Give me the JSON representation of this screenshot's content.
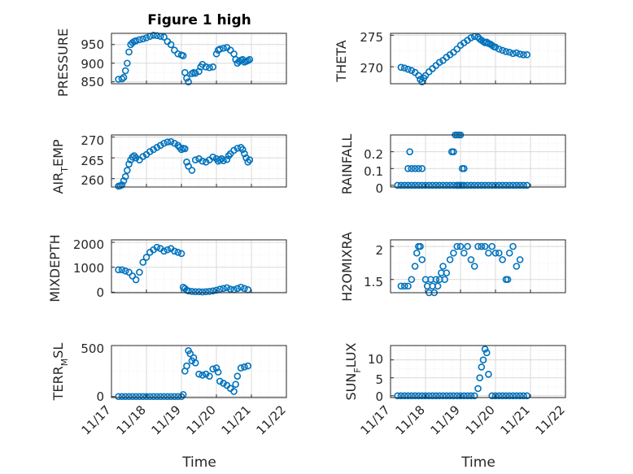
{
  "figure_title": "Figure 1 high",
  "marker_color": "#0072BD",
  "chart_data": [
    {
      "type": "scatter",
      "title": "Figure 1 high",
      "ylabel": "PRESSURE",
      "ylim": [
        845,
        980
      ],
      "yticks": [
        850,
        900,
        950
      ],
      "xlim": [
        0,
        5
      ],
      "x": [
        0.2,
        0.3,
        0.35,
        0.4,
        0.45,
        0.5,
        0.55,
        0.6,
        0.65,
        0.7,
        0.8,
        0.9,
        1.0,
        1.1,
        1.2,
        1.3,
        1.4,
        1.5,
        1.6,
        1.7,
        1.8,
        1.9,
        2.0,
        2.05,
        2.1,
        2.15,
        2.2,
        2.3,
        2.35,
        2.4,
        2.5,
        2.55,
        2.6,
        2.7,
        2.8,
        2.9,
        3.0,
        3.05,
        3.1,
        3.2,
        3.3,
        3.4,
        3.5,
        3.55,
        3.6,
        3.65,
        3.7,
        3.75,
        3.8,
        3.85,
        3.9,
        3.95
      ],
      "y": [
        857,
        858,
        862,
        880,
        900,
        930,
        950,
        955,
        958,
        960,
        963,
        965,
        968,
        972,
        975,
        974,
        972,
        970,
        958,
        950,
        935,
        925,
        922,
        920,
        875,
        860,
        850,
        872,
        875,
        873,
        878,
        890,
        897,
        890,
        888,
        890,
        925,
        935,
        938,
        940,
        942,
        935,
        925,
        910,
        900,
        905,
        908,
        910,
        903,
        905,
        907,
        910
      ]
    },
    {
      "type": "scatter",
      "ylabel": "THETA",
      "ylim": [
        267.3,
        275.3
      ],
      "yticks": [
        270,
        275
      ],
      "xlim": [
        0,
        5
      ],
      "x": [
        0.3,
        0.4,
        0.5,
        0.6,
        0.7,
        0.8,
        0.85,
        0.9,
        0.95,
        1.0,
        1.1,
        1.2,
        1.3,
        1.4,
        1.5,
        1.6,
        1.7,
        1.8,
        1.9,
        2.0,
        2.1,
        2.2,
        2.3,
        2.4,
        2.5,
        2.55,
        2.6,
        2.65,
        2.7,
        2.75,
        2.8,
        2.85,
        2.9,
        2.95,
        3.0,
        3.1,
        3.2,
        3.3,
        3.4,
        3.5,
        3.6,
        3.7,
        3.8,
        3.9
      ],
      "y": [
        269.9,
        269.8,
        269.6,
        269.4,
        269.1,
        268.6,
        268.0,
        267.6,
        268.2,
        268.6,
        269.2,
        269.7,
        270.2,
        270.7,
        271.0,
        271.5,
        271.9,
        272.3,
        272.8,
        273.4,
        273.8,
        274.2,
        274.6,
        274.8,
        274.7,
        274.4,
        274.2,
        274.0,
        273.8,
        273.9,
        273.7,
        273.6,
        273.4,
        273.2,
        273.1,
        272.8,
        272.6,
        272.4,
        272.3,
        272.1,
        272.2,
        272.0,
        271.9,
        271.9
      ]
    },
    {
      "type": "scatter",
      "ylabel": "AIR_TEMP",
      "ylim": [
        258,
        270.5
      ],
      "yticks": [
        260,
        265,
        270
      ],
      "xlim": [
        0,
        5
      ],
      "x": [
        0.2,
        0.25,
        0.3,
        0.35,
        0.4,
        0.45,
        0.5,
        0.55,
        0.6,
        0.65,
        0.7,
        0.8,
        0.9,
        1.0,
        1.1,
        1.2,
        1.3,
        1.4,
        1.5,
        1.6,
        1.7,
        1.8,
        1.9,
        1.95,
        2.0,
        2.05,
        2.1,
        2.15,
        2.2,
        2.3,
        2.4,
        2.5,
        2.6,
        2.7,
        2.8,
        2.9,
        3.0,
        3.05,
        3.1,
        3.15,
        3.2,
        3.3,
        3.35,
        3.4,
        3.5,
        3.6,
        3.7,
        3.75,
        3.8,
        3.85,
        3.9,
        3.95
      ],
      "y": [
        258.2,
        258.3,
        258.5,
        259.5,
        260.5,
        262.0,
        263.5,
        264.5,
        265.2,
        265.5,
        265.0,
        264.5,
        265.3,
        265.8,
        266.5,
        267.0,
        267.5,
        268.0,
        268.5,
        268.8,
        268.9,
        268.5,
        268.0,
        267.5,
        267.0,
        267.3,
        267.2,
        264.0,
        263.0,
        262.0,
        264.5,
        264.8,
        264.2,
        264.0,
        264.5,
        265.2,
        264.8,
        264.2,
        264.5,
        264.8,
        264.3,
        264.6,
        265.5,
        266.0,
        266.8,
        267.3,
        267.5,
        267.0,
        266.0,
        265.0,
        264.0,
        264.5
      ]
    },
    {
      "type": "scatter",
      "ylabel": "RAINFALL",
      "ylim": [
        -0.01,
        0.3
      ],
      "yticks": [
        0,
        0.1,
        0.2
      ],
      "xlim": [
        0,
        5
      ],
      "x": [
        0.2,
        0.3,
        0.4,
        0.5,
        0.6,
        0.7,
        0.8,
        0.9,
        1.0,
        1.1,
        1.2,
        1.3,
        1.4,
        1.5,
        1.6,
        1.7,
        1.8,
        1.9,
        2.0,
        2.1,
        2.2,
        2.3,
        2.4,
        2.5,
        2.6,
        2.7,
        2.8,
        2.9,
        3.0,
        3.1,
        3.2,
        3.3,
        3.4,
        3.5,
        3.6,
        3.7,
        3.8,
        3.9,
        0.5,
        0.6,
        0.7,
        0.8,
        0.9,
        0.55,
        1.75,
        1.8,
        1.85,
        1.9,
        1.95,
        2.0,
        2.05,
        2.1,
        1.9,
        1.95,
        2.0,
        2.05
      ],
      "y": [
        0,
        0,
        0,
        0,
        0,
        0,
        0,
        0,
        0,
        0,
        0,
        0,
        0,
        0,
        0,
        0,
        0,
        0,
        0,
        0,
        0,
        0,
        0,
        0,
        0,
        0,
        0,
        0,
        0,
        0,
        0,
        0,
        0,
        0,
        0,
        0,
        0,
        0,
        0.1,
        0.1,
        0.1,
        0.1,
        0.1,
        0.2,
        0.2,
        0.2,
        0.3,
        0.3,
        0.3,
        0.3,
        0.1,
        0.1,
        0,
        0,
        0,
        0
      ]
    },
    {
      "type": "scatter",
      "ylabel": "MIXDEPTH",
      "ylim": [
        -20,
        2100
      ],
      "yticks": [
        0,
        1000,
        2000
      ],
      "xlim": [
        0,
        5
      ],
      "x": [
        0.2,
        0.3,
        0.4,
        0.5,
        0.6,
        0.7,
        0.8,
        0.9,
        1.0,
        1.1,
        1.2,
        1.3,
        1.4,
        1.5,
        1.6,
        1.7,
        1.8,
        1.9,
        2.0,
        2.05,
        2.1,
        2.15,
        2.2,
        2.3,
        2.4,
        2.5,
        2.6,
        2.7,
        2.8,
        2.9,
        3.0,
        3.1,
        3.2,
        3.3,
        3.4,
        3.5,
        3.6,
        3.7,
        3.8,
        3.9
      ],
      "y": [
        900,
        900,
        850,
        800,
        650,
        500,
        800,
        1200,
        1400,
        1600,
        1700,
        1800,
        1750,
        1650,
        1700,
        1750,
        1650,
        1600,
        1550,
        200,
        150,
        80,
        50,
        30,
        20,
        20,
        10,
        20,
        30,
        50,
        80,
        120,
        150,
        180,
        120,
        100,
        150,
        200,
        150,
        100
      ]
    },
    {
      "type": "scatter",
      "ylabel": "H2OMIXRA",
      "ylim": [
        1.3,
        2.1
      ],
      "yticks": [
        1.5,
        2
      ],
      "xlim": [
        0,
        5
      ],
      "x": [
        0.3,
        0.4,
        0.5,
        0.6,
        0.7,
        0.75,
        0.8,
        0.85,
        0.9,
        1.0,
        1.05,
        1.1,
        1.15,
        1.2,
        1.25,
        1.3,
        1.35,
        1.4,
        1.45,
        1.5,
        1.55,
        1.6,
        1.7,
        1.8,
        1.9,
        2.0,
        2.1,
        2.2,
        2.3,
        2.4,
        2.5,
        2.6,
        2.7,
        2.8,
        2.9,
        3.0,
        3.1,
        3.2,
        3.3,
        3.35,
        3.4,
        3.5,
        3.6,
        3.7
      ],
      "y": [
        1.4,
        1.4,
        1.4,
        1.5,
        1.7,
        1.9,
        2.0,
        2.0,
        1.8,
        1.5,
        1.4,
        1.3,
        1.5,
        1.4,
        1.3,
        1.5,
        1.4,
        1.5,
        1.6,
        1.7,
        1.5,
        1.6,
        1.8,
        1.9,
        2.0,
        2.0,
        1.9,
        2.0,
        1.8,
        1.7,
        2.0,
        2.0,
        2.0,
        1.9,
        2.0,
        1.9,
        1.9,
        1.8,
        1.5,
        1.5,
        1.9,
        2.0,
        1.7,
        1.8
      ]
    },
    {
      "type": "scatter",
      "ylabel": "TERR_MSL",
      "ylim": [
        -10,
        500
      ],
      "yticks": [
        0,
        500
      ],
      "xlim": [
        0,
        5
      ],
      "x": [
        0.2,
        0.3,
        0.4,
        0.5,
        0.6,
        0.7,
        0.8,
        0.9,
        1.0,
        1.1,
        1.2,
        1.3,
        1.4,
        1.5,
        1.6,
        1.7,
        1.8,
        1.9,
        2.0,
        2.05,
        2.1,
        2.15,
        2.2,
        2.25,
        2.3,
        2.35,
        2.4,
        2.5,
        2.6,
        2.7,
        2.8,
        2.9,
        3.0,
        3.05,
        3.1,
        3.2,
        3.3,
        3.4,
        3.5,
        3.55,
        3.6,
        3.7,
        3.8,
        3.9
      ],
      "y": [
        0,
        0,
        0,
        0,
        0,
        0,
        0,
        0,
        0,
        0,
        0,
        0,
        0,
        0,
        0,
        0,
        0,
        0,
        0,
        20,
        250,
        300,
        450,
        420,
        350,
        380,
        330,
        220,
        210,
        220,
        200,
        270,
        280,
        240,
        150,
        130,
        110,
        80,
        50,
        120,
        200,
        280,
        290,
        300
      ]
    },
    {
      "type": "scatter",
      "ylabel": "SUN_FLUX",
      "ylim": [
        -0.5,
        14
      ],
      "yticks": [
        0,
        5,
        10
      ],
      "xlim": [
        0,
        5
      ],
      "x": [
        0.2,
        0.3,
        0.4,
        0.5,
        0.6,
        0.7,
        0.8,
        0.9,
        1.0,
        1.1,
        1.2,
        1.3,
        1.4,
        1.5,
        1.6,
        1.7,
        1.8,
        1.9,
        2.0,
        2.1,
        2.2,
        2.3,
        2.4,
        2.5,
        2.55,
        2.6,
        2.65,
        2.7,
        2.75,
        2.8,
        2.9,
        3.0,
        3.1,
        3.2,
        3.3,
        3.4,
        3.5,
        3.6,
        3.7,
        3.8,
        3.9
      ],
      "y": [
        0,
        0,
        0,
        0,
        0,
        0,
        0,
        0,
        0,
        0,
        0,
        0,
        0,
        0,
        0,
        0,
        0,
        0,
        0,
        0,
        0,
        0,
        0,
        2,
        5,
        8,
        10,
        13,
        12,
        6,
        0,
        0,
        0,
        0,
        0,
        0,
        0,
        0,
        0,
        0,
        0
      ]
    }
  ],
  "ylabels": {
    "pressure": "PRESSURE",
    "theta": "THETA",
    "air_temp_main": "AIR",
    "air_temp_sub": "T",
    "air_temp_tail": "EMP",
    "rainfall": "RAINFALL",
    "mixdepth": "MIXDEPTH",
    "h2omixra": "H2OMIXRA",
    "terr_main": "TERR",
    "terr_sub": "M",
    "terr_tail": "SL",
    "sun_main": "SUN",
    "sun_sub": "F",
    "sun_tail": "LUX"
  },
  "yticklabels": {
    "pressure": [
      "850",
      "900",
      "950"
    ],
    "theta": [
      "270",
      "275"
    ],
    "air_temp": [
      "260",
      "265",
      "270"
    ],
    "rainfall": [
      "0",
      "0.1",
      "0.2"
    ],
    "mixdepth": [
      "0",
      "1000",
      "2000"
    ],
    "h2omixra": [
      "1.5",
      "2"
    ],
    "terr_msl": [
      "0",
      "500"
    ],
    "sun_flux": [
      "0",
      "5",
      "10"
    ]
  },
  "xticklabels": [
    "11/17",
    "11/18",
    "11/19",
    "11/20",
    "11/21",
    "11/22"
  ],
  "xlabels": {
    "left": "Time",
    "right": "Time"
  }
}
